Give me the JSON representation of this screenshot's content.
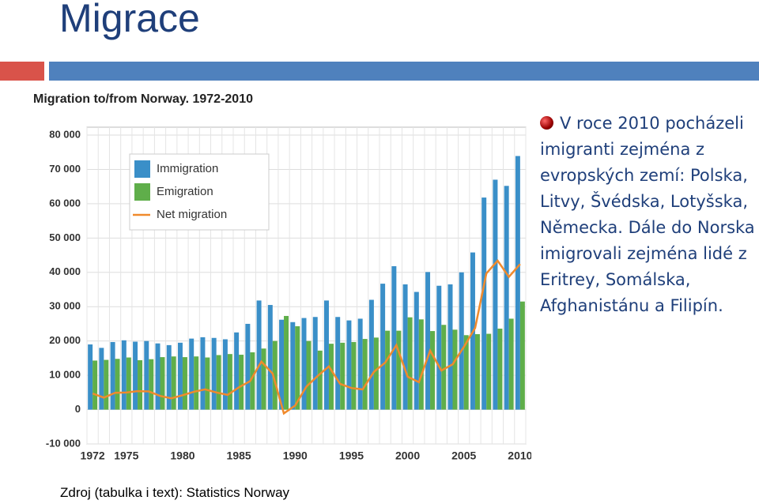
{
  "slide_title": "Migrace",
  "bullet": "V roce 2010 pocházeli imigranti zejména z evropských zemí: Polska, Litvy, Švédska, Lotyšska, Německa. Dále do Norska imigrovali zejména lidé z Eritrey, Somálska, Afghanistánu a Filipín.",
  "source": "Zdroj (tabulka i text): Statistics Norway",
  "chart_data": {
    "type": "bar",
    "title": "Migration to/from Norway. 1972-2010",
    "categories": [
      "1972",
      null,
      null,
      "1975",
      null,
      null,
      null,
      null,
      "1980",
      null,
      null,
      null,
      null,
      "1985",
      null,
      null,
      null,
      null,
      "1990",
      null,
      null,
      null,
      null,
      "1995",
      null,
      null,
      null,
      null,
      "2000",
      null,
      null,
      null,
      null,
      "2005",
      null,
      null,
      null,
      null,
      "2010"
    ],
    "series": [
      {
        "name": "Immigration",
        "color": "#3a8fc8",
        "values": [
          19000,
          18000,
          19700,
          20200,
          19800,
          20000,
          19300,
          18800,
          19500,
          20700,
          21100,
          20900,
          20500,
          22500,
          25000,
          31800,
          30500,
          26200,
          25500,
          26700,
          27000,
          31800,
          27000,
          26000,
          26500,
          32000,
          36700,
          41800,
          36500,
          34300,
          40100,
          36100,
          36500,
          40000,
          45800,
          61800,
          67000,
          65200,
          73900
        ]
      },
      {
        "name": "Emigration",
        "color": "#5fae4a",
        "values": [
          14300,
          14500,
          14800,
          15200,
          14400,
          14700,
          15300,
          15500,
          15300,
          15500,
          15200,
          15900,
          16200,
          16000,
          16700,
          17800,
          20000,
          27300,
          24300,
          20000,
          17200,
          19200,
          19500,
          19700,
          20600,
          21000,
          23000,
          23000,
          26900,
          26300,
          22900,
          24700,
          23300,
          21700,
          22000,
          22100,
          23600,
          26500,
          31500
        ]
      },
      {
        "name": "Net migration",
        "color": "#f08a2c",
        "type": "line",
        "values": [
          4700,
          3500,
          4900,
          5000,
          5400,
          5300,
          4000,
          3300,
          4200,
          5200,
          5900,
          5000,
          4300,
          6500,
          8300,
          14000,
          10500,
          -1100,
          1200,
          6700,
          9800,
          12600,
          7500,
          6300,
          5900,
          11000,
          13700,
          18800,
          9600,
          8000,
          17200,
          11400,
          13200,
          18300,
          23800,
          39700,
          43400,
          38700,
          42400
        ]
      }
    ],
    "ylim": [
      -10000,
      80000
    ],
    "yticks": [
      {
        "value": -10000,
        "label": "-10 000"
      },
      0,
      {
        "value": 10000,
        "label": "10 000"
      },
      {
        "value": 20000,
        "label": "20 000"
      },
      {
        "value": 30000,
        "label": "30 000"
      },
      {
        "value": 40000,
        "label": "40 000"
      },
      {
        "value": 50000,
        "label": "50 000"
      },
      {
        "value": 60000,
        "label": "60 000"
      },
      {
        "value": 70000,
        "label": "70 000"
      },
      {
        "value": 80000,
        "label": "80 000"
      }
    ],
    "grid": true
  }
}
